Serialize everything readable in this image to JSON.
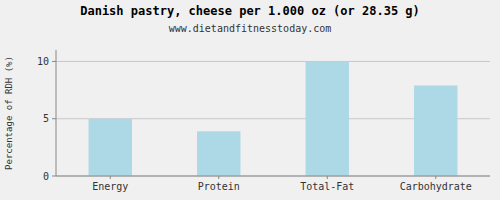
{
  "chart_data": {
    "type": "bar",
    "title": "Danish pastry, cheese per 1.000 oz (or 28.35 g)",
    "subtitle": "www.dietandfitnesstoday.com",
    "categories": [
      "Energy",
      "Protein",
      "Total-Fat",
      "Carbohydrate"
    ],
    "values": [
      5.0,
      3.9,
      10.0,
      7.9
    ],
    "color": "#add8e6",
    "ylabel": "Percentage of RDH (%)",
    "ylim": [
      0,
      11
    ],
    "yticks": [
      0,
      5,
      10
    ],
    "grid": true
  }
}
